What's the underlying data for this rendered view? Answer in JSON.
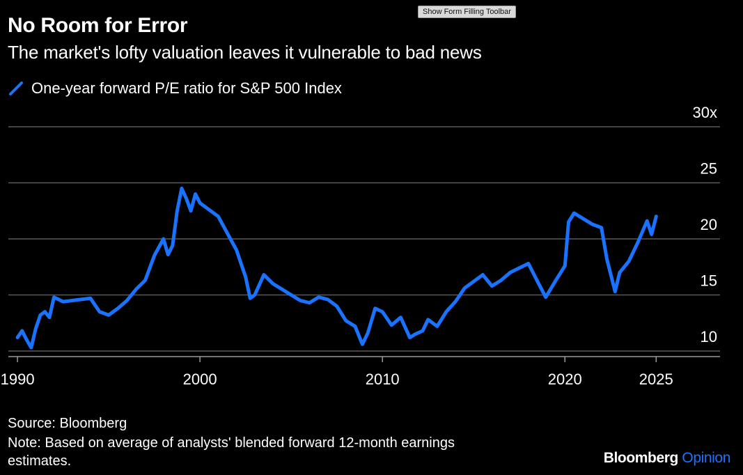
{
  "toolbar": {
    "form_filling_label": "Show Form Filling Toolbar"
  },
  "header": {
    "title": "No Room for Error",
    "subtitle": "The market's lofty valuation leaves it vulnerable to bad news"
  },
  "footer": {
    "source": "Source: Bloomberg",
    "note": "Note: Based on average of analysts' blended forward 12-month earnings estimates.",
    "brand_primary": "Bloomberg",
    "brand_secondary": "Opinion"
  },
  "colors": {
    "background": "#000000",
    "series": "#1a73ff",
    "gridline": "#5a5a5a",
    "text": "#ffffff"
  },
  "chart_data": {
    "type": "line",
    "title": "No Room for Error",
    "subtitle": "The market's lofty valuation leaves it vulnerable to bad news",
    "xlabel": "",
    "ylabel": "",
    "xlim": [
      1989.5,
      2028.5
    ],
    "ylim": [
      9.5,
      30
    ],
    "x_ticks": [
      {
        "value": 1990,
        "label": "1990"
      },
      {
        "value": 2000,
        "label": "2000"
      },
      {
        "value": 2010,
        "label": "2010"
      },
      {
        "value": 2020,
        "label": "2020"
      },
      {
        "value": 2025,
        "label": "2025"
      }
    ],
    "y_ticks": [
      {
        "value": 10,
        "label": "10"
      },
      {
        "value": 15,
        "label": "15"
      },
      {
        "value": 20,
        "label": "20"
      },
      {
        "value": 25,
        "label": "25"
      },
      {
        "value": 30,
        "label": "30x"
      }
    ],
    "grid": "horizontal",
    "legend_position": "top-left",
    "series": [
      {
        "name": "One-year forward P/E ratio for S&P 500 Index",
        "color": "#1a73ff",
        "x": [
          1990.0,
          1990.25,
          1990.5,
          1990.75,
          1991.0,
          1991.25,
          1991.5,
          1991.75,
          1992.0,
          1992.5,
          1993.0,
          1993.5,
          1994.0,
          1994.5,
          1995.0,
          1995.5,
          1996.0,
          1996.5,
          1997.0,
          1997.5,
          1998.0,
          1998.25,
          1998.5,
          1998.75,
          1999.0,
          1999.25,
          1999.5,
          1999.75,
          2000.0,
          2000.5,
          2001.0,
          2001.5,
          2002.0,
          2002.5,
          2002.75,
          2003.0,
          2003.5,
          2004.0,
          2004.5,
          2005.0,
          2005.5,
          2006.0,
          2006.5,
          2007.0,
          2007.5,
          2008.0,
          2008.5,
          2008.9,
          2009.2,
          2009.6,
          2010.0,
          2010.5,
          2011.0,
          2011.5,
          2011.8,
          2012.2,
          2012.5,
          2013.0,
          2013.5,
          2014.0,
          2014.5,
          2015.0,
          2015.5,
          2016.0,
          2016.5,
          2017.0,
          2017.5,
          2018.0,
          2018.5,
          2018.95,
          2019.5,
          2020.0,
          2020.2,
          2020.5,
          2021.0,
          2021.5,
          2022.0,
          2022.3,
          2022.75,
          2023.0,
          2023.5,
          2024.0,
          2024.5,
          2024.75,
          2025.0
        ],
        "y": [
          11.2,
          11.8,
          11.0,
          10.3,
          12.0,
          13.2,
          13.5,
          13.0,
          14.8,
          14.4,
          14.5,
          14.6,
          14.7,
          13.5,
          13.2,
          13.8,
          14.5,
          15.5,
          16.3,
          18.5,
          20.0,
          18.6,
          19.4,
          22.5,
          24.5,
          23.6,
          22.5,
          24.0,
          23.2,
          22.6,
          22.0,
          20.5,
          19.0,
          16.6,
          14.7,
          15.0,
          16.8,
          16.0,
          15.5,
          15.0,
          14.5,
          14.3,
          14.8,
          14.6,
          14.0,
          12.7,
          12.2,
          10.6,
          11.6,
          13.8,
          13.5,
          12.3,
          13.0,
          11.2,
          11.5,
          11.8,
          12.8,
          12.2,
          13.5,
          14.4,
          15.6,
          16.2,
          16.8,
          15.8,
          16.3,
          17.0,
          17.4,
          17.8,
          16.2,
          14.8,
          16.3,
          17.6,
          21.5,
          22.3,
          21.8,
          21.3,
          21.0,
          18.2,
          15.3,
          17.0,
          18.0,
          19.7,
          21.6,
          20.4,
          22.0
        ]
      }
    ]
  }
}
